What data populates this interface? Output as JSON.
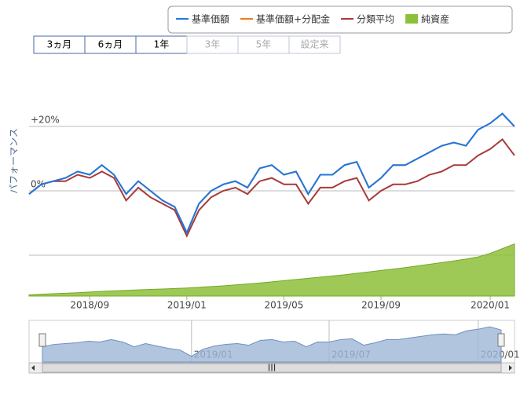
{
  "chart_data": {
    "type": "line",
    "y_axis_title": "パフォーマンス",
    "range_buttons": [
      {
        "label": "3ヵ月",
        "enabled": true
      },
      {
        "label": "6ヵ月",
        "enabled": true
      },
      {
        "label": "1年",
        "enabled": true
      },
      {
        "label": "3年",
        "enabled": false
      },
      {
        "label": "5年",
        "enabled": false
      },
      {
        "label": "設定来",
        "enabled": false
      }
    ],
    "categories": [
      null,
      null,
      null,
      null,
      null,
      "2018/09",
      null,
      null,
      null,
      null,
      null,
      null,
      null,
      "2019/01",
      null,
      null,
      null,
      null,
      null,
      null,
      null,
      "2019/05",
      null,
      null,
      null,
      null,
      null,
      null,
      null,
      "2019/09",
      null,
      null,
      null,
      null,
      null,
      null,
      null,
      null,
      "2020/01",
      null,
      null
    ],
    "ylim": [
      -32.7,
      41
    ],
    "yticks": [
      {
        "value": 0,
        "label": "0%"
      },
      {
        "value": 20,
        "label": "+20%"
      }
    ],
    "grid_lines": [
      -20,
      0,
      20
    ],
    "y2lim": [
      0,
      100
    ],
    "series": [
      {
        "name": "基準価額",
        "color": "#1e78e0",
        "values": [
          -1,
          2,
          3,
          4,
          6,
          5,
          8,
          5,
          -1,
          3,
          0,
          -3,
          -5,
          -13,
          -4,
          0,
          2,
          3,
          1,
          7,
          8,
          5,
          6,
          -1,
          5,
          5,
          8,
          9,
          1,
          4,
          8,
          8,
          10,
          12,
          14,
          15,
          14,
          19,
          21,
          24,
          20
        ]
      },
      {
        "name": "基準価額+分配金",
        "color": "#f07b1a",
        "values": [
          -1,
          2,
          3,
          4,
          6,
          5,
          8,
          5,
          -1,
          3,
          0,
          -3,
          -5,
          -13,
          -4,
          0,
          2,
          3,
          1,
          7,
          8,
          5,
          6,
          -1,
          5,
          5,
          8,
          9,
          1,
          4,
          8,
          8,
          10,
          12,
          14,
          15,
          14,
          19,
          21,
          24,
          20
        ]
      },
      {
        "name": "分類平均",
        "color": "#a83a3a",
        "values": [
          -1,
          2,
          3,
          3,
          5,
          4,
          6,
          4,
          -3,
          1,
          -2,
          -4,
          -6,
          -14,
          -6,
          -2,
          0,
          1,
          -1,
          3,
          4,
          2,
          2,
          -4,
          1,
          1,
          3,
          4,
          -3,
          0,
          2,
          2,
          3,
          5,
          6,
          8,
          8,
          11,
          13,
          16,
          11
        ]
      },
      {
        "name": "純資産",
        "color": "#8dc03a",
        "type": "area",
        "axis": "y2",
        "values": [
          0.5,
          0.8,
          1,
          1.2,
          1.4,
          1.7,
          2,
          2.2,
          2.4,
          2.6,
          2.8,
          3,
          3.2,
          3.4,
          3.7,
          4,
          4.3,
          4.7,
          5.1,
          5.5,
          6,
          6.5,
          7,
          7.5,
          8,
          8.5,
          9,
          9.6,
          10.2,
          10.8,
          11.4,
          12,
          12.7,
          13.4,
          14.1,
          14.8,
          15.6,
          16.5,
          18,
          20,
          22
        ]
      }
    ],
    "navigator": {
      "ylim": [
        -20,
        30
      ],
      "categories": [
        null,
        null,
        null,
        null,
        null,
        null,
        null,
        null,
        null,
        null,
        null,
        null,
        null,
        "2019/01",
        null,
        null,
        null,
        null,
        null,
        null,
        null,
        null,
        null,
        null,
        null,
        "2019/07",
        null,
        null,
        null,
        null,
        null,
        null,
        null,
        null,
        null,
        null,
        null,
        null,
        "2020/01",
        null,
        null
      ],
      "scroll_label": "III"
    }
  }
}
